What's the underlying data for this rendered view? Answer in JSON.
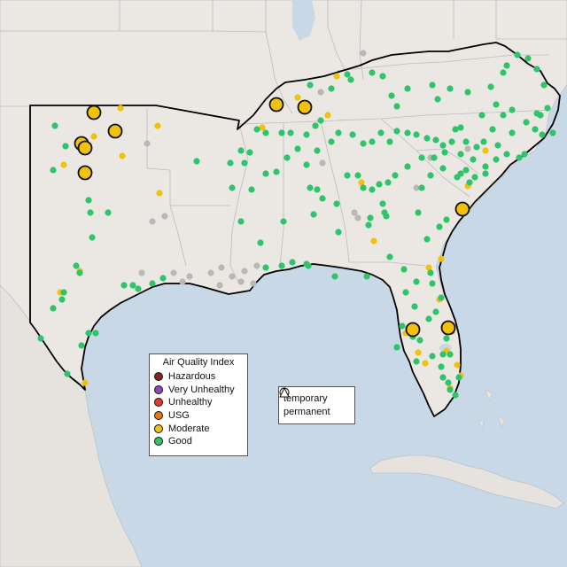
{
  "legend_aqi": {
    "title": "Air Quality Index",
    "items": [
      {
        "label": "Hazardous",
        "color": "#7e2a22"
      },
      {
        "label": "Very Unhealthy",
        "color": "#8e4bb8"
      },
      {
        "label": "Unhealthy",
        "color": "#e53b2c"
      },
      {
        "label": "USG",
        "color": "#e97716"
      },
      {
        "label": "Moderate",
        "color": "#f2c10c"
      },
      {
        "label": "Good",
        "color": "#2dc46a"
      }
    ]
  },
  "legend_shape": {
    "items": [
      {
        "label": "temporary",
        "icon": "circle-icon"
      },
      {
        "label": "permanent",
        "icon": "triangle-icon"
      }
    ]
  },
  "colors": {
    "water": "#c9d8e6",
    "land": "#ebe7e3",
    "highlight_border": "#000000",
    "state_border": "#bdbdbd",
    "good": "#2dc46a",
    "moderate": "#f2c10c",
    "no_data": "#b8b8b8"
  }
}
